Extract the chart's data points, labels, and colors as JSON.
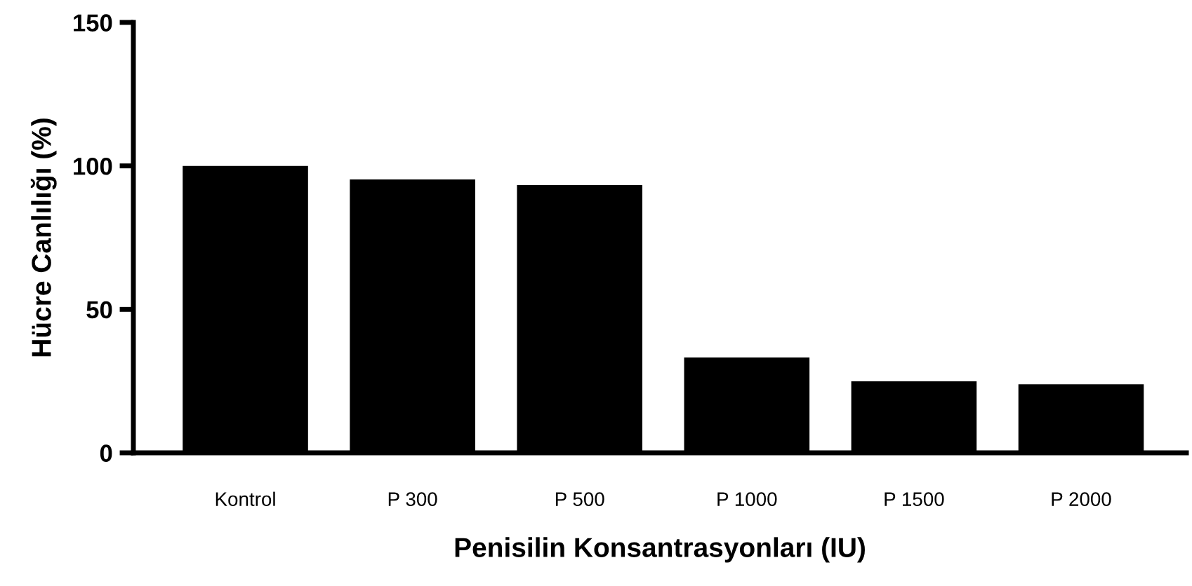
{
  "chart_data": {
    "type": "bar",
    "xlabel": "Penisilin Konsantrasyonları (IU)",
    "ylabel": "Hücre Canlılığı (%)",
    "categories": [
      "Kontrol",
      "P 300",
      "P 500",
      "P 1000",
      "P 1500",
      "P 2000"
    ],
    "values": [
      100,
      95.3,
      93.3,
      33.2,
      24.9,
      23.9
    ],
    "color": "#000000",
    "ylim": [
      0,
      150
    ],
    "yticks": [
      0,
      50,
      100,
      150
    ],
    "grid": false,
    "legend": false
  }
}
